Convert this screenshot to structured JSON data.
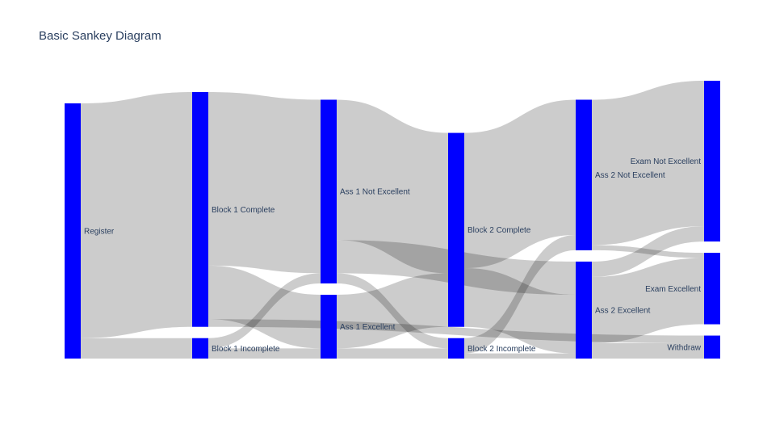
{
  "chart_data": {
    "type": "sankey",
    "title": "Basic Sankey Diagram",
    "node_color": "#0000ff",
    "link_color": "#000000",
    "link_opacity": 0.2,
    "nodes": [
      {
        "id": 0,
        "label": "Register",
        "column": 0
      },
      {
        "id": 1,
        "label": "Block 1 Complete",
        "column": 1
      },
      {
        "id": 2,
        "label": "Block 1 Incomplete",
        "column": 1
      },
      {
        "id": 3,
        "label": "Ass 1 Not Excellent",
        "column": 2
      },
      {
        "id": 4,
        "label": "Ass 1 Excellent",
        "column": 2
      },
      {
        "id": 5,
        "label": "Block 2 Complete",
        "column": 3
      },
      {
        "id": 6,
        "label": "Block 2 Incomplete",
        "column": 3
      },
      {
        "id": 7,
        "label": "Ass 2 Not Excellent",
        "column": 4
      },
      {
        "id": 8,
        "label": "Ass 2 Excellent",
        "column": 4
      },
      {
        "id": 9,
        "label": "Exam Not Excellent",
        "column": 5
      },
      {
        "id": 10,
        "label": "Exam Excellent",
        "column": 5
      },
      {
        "id": 11,
        "label": "Withdraw",
        "column": 5
      }
    ],
    "links": [
      {
        "source": 0,
        "target": 1,
        "value": 92
      },
      {
        "source": 0,
        "target": 2,
        "value": 8
      },
      {
        "source": 1,
        "target": 3,
        "value": 68
      },
      {
        "source": 1,
        "target": 4,
        "value": 21
      },
      {
        "source": 1,
        "target": 11,
        "value": 3
      },
      {
        "source": 2,
        "target": 3,
        "value": 4
      },
      {
        "source": 2,
        "target": 4,
        "value": 4
      },
      {
        "source": 3,
        "target": 5,
        "value": 55
      },
      {
        "source": 3,
        "target": 6,
        "value": 4
      },
      {
        "source": 3,
        "target": 8,
        "value": 13
      },
      {
        "source": 4,
        "target": 5,
        "value": 21
      },
      {
        "source": 4,
        "target": 6,
        "value": 4
      },
      {
        "source": 5,
        "target": 7,
        "value": 53
      },
      {
        "source": 5,
        "target": 8,
        "value": 23
      },
      {
        "source": 6,
        "target": 7,
        "value": 6
      },
      {
        "source": 6,
        "target": 8,
        "value": 2
      },
      {
        "source": 7,
        "target": 9,
        "value": 57
      },
      {
        "source": 7,
        "target": 10,
        "value": 2
      },
      {
        "source": 8,
        "target": 9,
        "value": 6
      },
      {
        "source": 8,
        "target": 10,
        "value": 26
      },
      {
        "source": 8,
        "target": 11,
        "value": 6
      }
    ]
  }
}
